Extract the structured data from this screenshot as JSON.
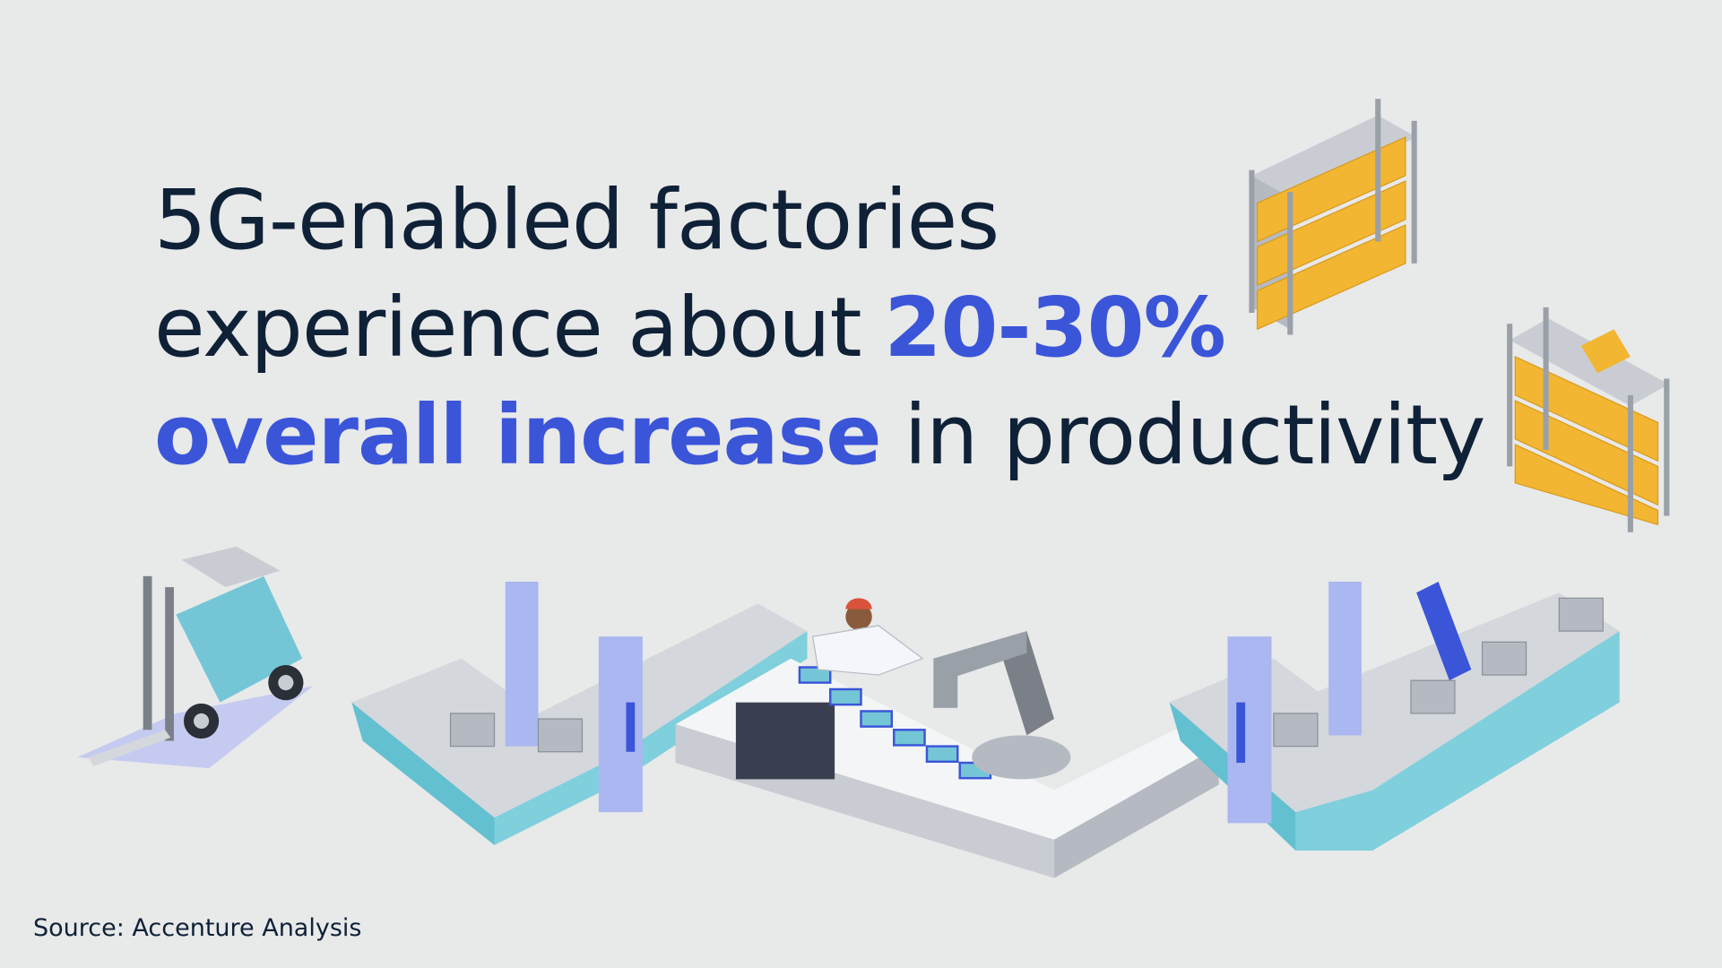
{
  "headline": {
    "lines": [
      [
        {
          "text": "5G-enabled factories",
          "highlight": false
        }
      ],
      [
        {
          "text": "experience about",
          "highlight": false
        },
        {
          "text": "20-30%",
          "highlight": true
        }
      ],
      [
        {
          "text": "overall increase",
          "highlight": true
        },
        {
          "text": "in productivity",
          "highlight": false
        }
      ]
    ]
  },
  "source": "Source: Accenture Analysis"
}
